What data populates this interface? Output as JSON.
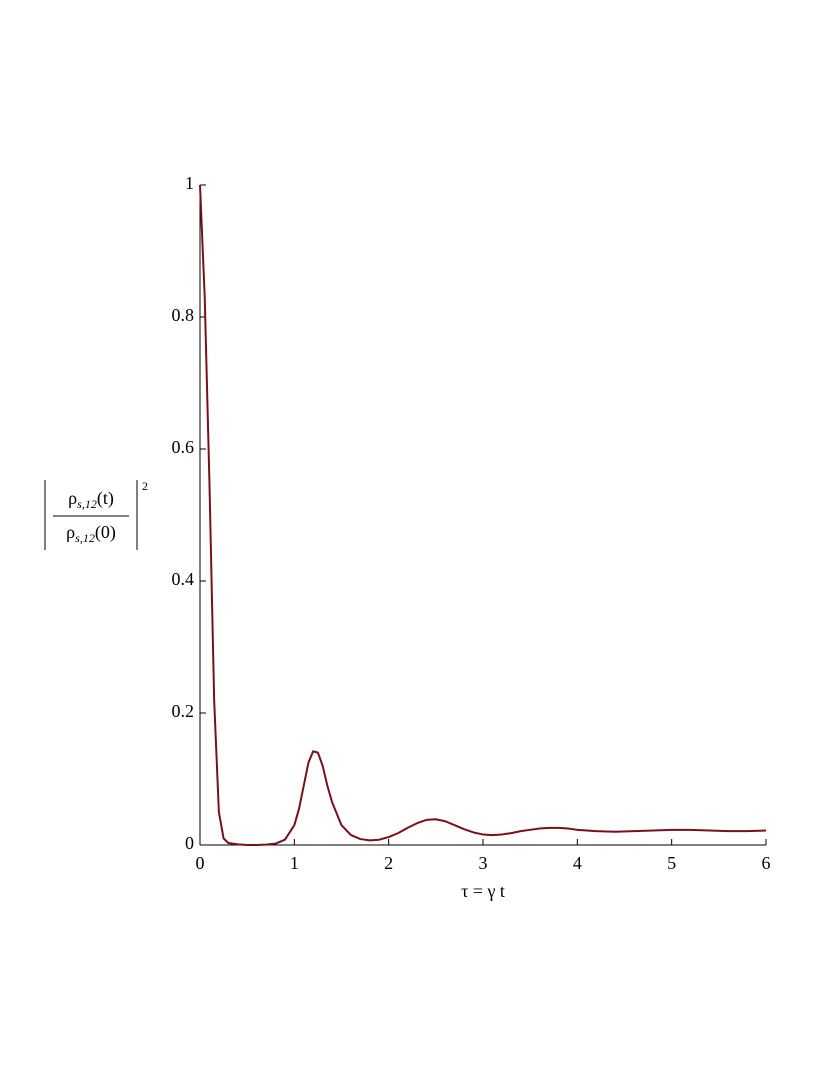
{
  "chart_data": {
    "type": "line",
    "xlabel": "τ = γ t",
    "ylabel": {
      "numerator": [
        "ρ",
        "s,12",
        "(t)"
      ],
      "denominator": [
        "ρ",
        "s,12",
        "(0)"
      ],
      "exponent": "2"
    },
    "x": [
      0,
      0.05,
      0.1,
      0.15,
      0.2,
      0.25,
      0.3,
      0.4,
      0.5,
      0.6,
      0.7,
      0.8,
      0.9,
      1.0,
      1.05,
      1.1,
      1.15,
      1.2,
      1.25,
      1.3,
      1.35,
      1.4,
      1.5,
      1.6,
      1.7,
      1.8,
      1.9,
      2.0,
      2.1,
      2.2,
      2.3,
      2.4,
      2.5,
      2.6,
      2.7,
      2.8,
      2.9,
      3.0,
      3.1,
      3.2,
      3.3,
      3.4,
      3.5,
      3.6,
      3.7,
      3.8,
      3.9,
      4.0,
      4.2,
      4.4,
      4.6,
      4.8,
      5.0,
      5.2,
      5.4,
      5.6,
      5.8,
      6.0
    ],
    "series": [
      {
        "color": "#7a0f1c",
        "values": [
          1.0,
          0.83,
          0.55,
          0.22,
          0.05,
          0.01,
          0.003,
          0.001,
          0,
          0,
          0.0005,
          0.002,
          0.008,
          0.03,
          0.055,
          0.09,
          0.125,
          0.142,
          0.14,
          0.12,
          0.09,
          0.065,
          0.03,
          0.015,
          0.009,
          0.007,
          0.008,
          0.012,
          0.018,
          0.026,
          0.033,
          0.038,
          0.039,
          0.036,
          0.03,
          0.024,
          0.019,
          0.016,
          0.015,
          0.016,
          0.018,
          0.021,
          0.023,
          0.025,
          0.026,
          0.026,
          0.025,
          0.023,
          0.021,
          0.02,
          0.021,
          0.022,
          0.023,
          0.023,
          0.022,
          0.021,
          0.021,
          0.022
        ]
      }
    ],
    "xlim": [
      0,
      6
    ],
    "xticks": [
      0,
      1,
      2,
      3,
      4,
      5,
      6
    ],
    "ylim": [
      0,
      1
    ],
    "yticks": [
      0,
      0.2,
      0.4,
      0.6,
      0.8,
      1
    ]
  }
}
